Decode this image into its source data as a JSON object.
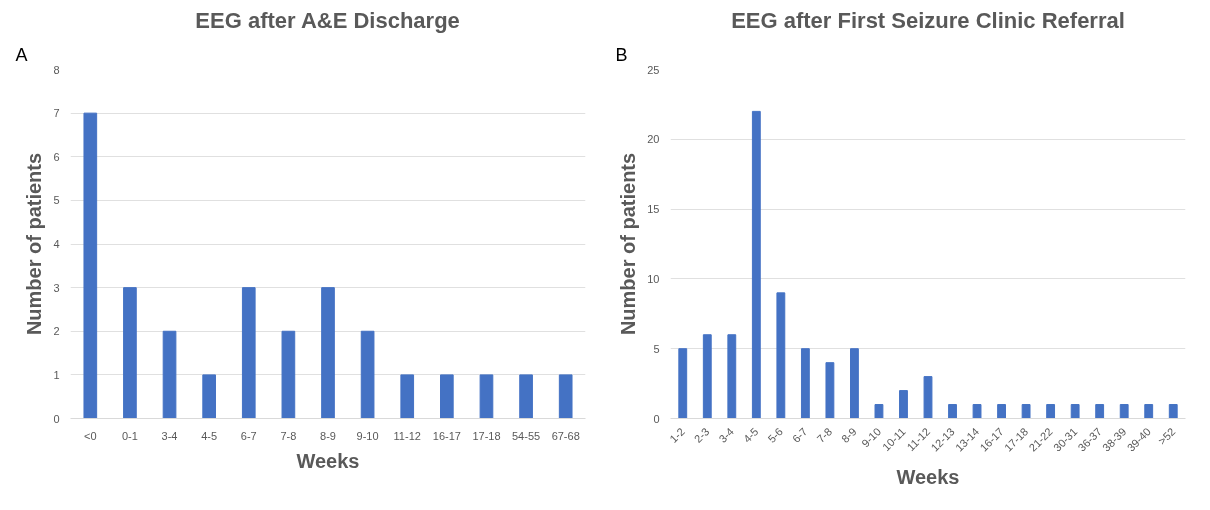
{
  "chart_data": [
    {
      "type": "bar",
      "title": "EEG after A&E Discharge",
      "xlabel": "Weeks",
      "ylabel": "Number of patients",
      "annotations": [
        "A"
      ],
      "categories": [
        "<0",
        "0-1",
        "3-4",
        "4-5",
        "6-7",
        "7-8",
        "8-9",
        "9-10",
        "11-12",
        "16-17",
        "17-18",
        "54-55",
        "67-68"
      ],
      "series": [
        {
          "color": "#4472c4",
          "values": [
            7,
            3,
            2,
            1,
            3,
            2,
            3,
            2,
            1,
            1,
            1,
            1,
            1
          ]
        }
      ],
      "ylim": [
        0,
        8
      ],
      "yticks": [
        0,
        1,
        2,
        3,
        4,
        5,
        6,
        7,
        8
      ],
      "grid": "y"
    },
    {
      "type": "bar",
      "title": "EEG after First Seizure Clinic Referral",
      "xlabel": "Weeks",
      "ylabel": "Number of patients",
      "annotations": [
        "B"
      ],
      "categories": [
        "1-2",
        "2-3",
        "3-4",
        "4-5",
        "5-6",
        "6-7",
        "7-8",
        "8-9",
        "9-10",
        "10-11",
        "11-12",
        "12-13",
        "13-14",
        "16-17",
        "17-18",
        "21-22",
        "30-31",
        "36-37",
        "38-39",
        "39-40",
        ">52"
      ],
      "series": [
        {
          "color": "#4472c4",
          "values": [
            5,
            6,
            6,
            22,
            9,
            5,
            4,
            5,
            1,
            2,
            3,
            1,
            1,
            1,
            1,
            1,
            1,
            1,
            1,
            1,
            1
          ]
        }
      ],
      "ylim": [
        0,
        25
      ],
      "yticks": [
        0,
        5,
        10,
        15,
        20,
        25
      ],
      "grid": "y"
    }
  ]
}
